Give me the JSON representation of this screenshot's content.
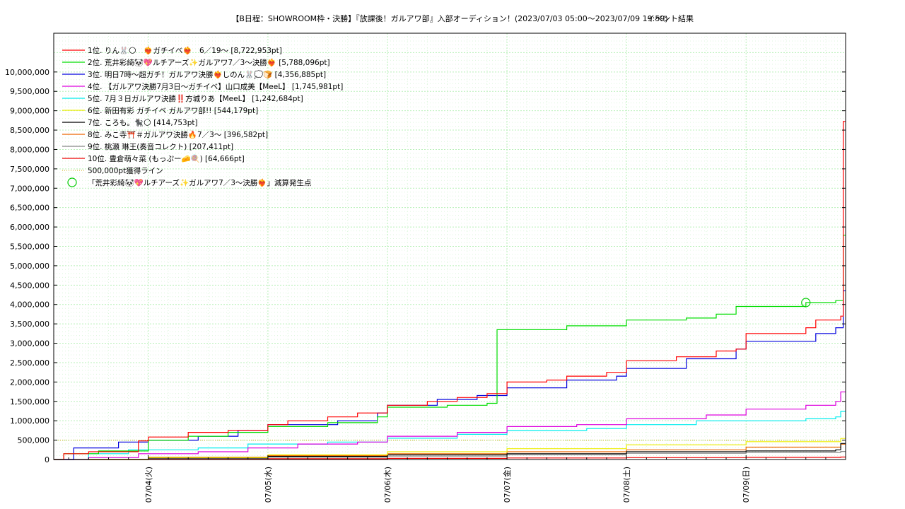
{
  "chart_data": {
    "type": "line",
    "title": "【B日程：SHOWROOM枠・決勝】『放課後！ガルアワ部』入部オーディション！(2023/07/03 05:00〜2023/07/09 19:59)",
    "subtitle": "イベント結果",
    "xlabel": "",
    "ylabel": "",
    "x_range": [
      "2023/07/03 05:00",
      "2023/07/09 19:59"
    ],
    "ylim": [
      0,
      11000000
    ],
    "grid": true,
    "legend_position": "top-left",
    "x_ticks": [
      "07/04(火)",
      "07/05(水)",
      "07/06(木)",
      "07/07(金)",
      "07/08(土)",
      "07/09(日)"
    ],
    "y_ticks": [
      "0",
      "500,000",
      "1,000,000",
      "1,500,000",
      "2,000,000",
      "2,500,000",
      "3,000,000",
      "3,500,000",
      "4,000,000",
      "4,500,000",
      "5,000,000",
      "5,500,000",
      "6,000,000",
      "6,500,000",
      "7,000,000",
      "7,500,000",
      "8,000,000",
      "8,500,000",
      "9,000,000",
      "9,500,000",
      "10,000,000"
    ],
    "series": [
      {
        "name": "1位. りん🐰🌕　❤️‍🔥ガチイベ❤️‍🔥　6／19〜 [8,722,953pt]",
        "color": "#ff0000",
        "points": [
          [
            "07/03 05:00",
            0
          ],
          [
            "07/03 07:00",
            150000
          ],
          [
            "07/03 12:00",
            200000
          ],
          [
            "07/03 22:00",
            480000
          ],
          [
            "07/04 00:00",
            580000
          ],
          [
            "07/04 08:00",
            700000
          ],
          [
            "07/04 16:00",
            750000
          ],
          [
            "07/05 00:00",
            900000
          ],
          [
            "07/05 04:00",
            1000000
          ],
          [
            "07/05 12:00",
            1100000
          ],
          [
            "07/05 18:00",
            1200000
          ],
          [
            "07/06 00:00",
            1400000
          ],
          [
            "07/06 08:00",
            1500000
          ],
          [
            "07/06 14:00",
            1600000
          ],
          [
            "07/06 20:00",
            1700000
          ],
          [
            "07/07 00:00",
            2000000
          ],
          [
            "07/07 08:00",
            2050000
          ],
          [
            "07/07 12:00",
            2150000
          ],
          [
            "07/07 20:00",
            2250000
          ],
          [
            "07/08 00:00",
            2550000
          ],
          [
            "07/08 10:00",
            2650000
          ],
          [
            "07/08 18:00",
            2800000
          ],
          [
            "07/08 22:00",
            2850000
          ],
          [
            "07/09 00:00",
            3250000
          ],
          [
            "07/09 12:00",
            3400000
          ],
          [
            "07/09 14:00",
            3600000
          ],
          [
            "07/09 19:00",
            3700000
          ],
          [
            "07/09 19:30",
            8722953
          ],
          [
            "07/09 19:59",
            8722953
          ]
        ]
      },
      {
        "name": "2位. 荒井彩綺🐼💖ルチアーズ✨ガルアワ7／3〜決勝❤️‍🔥 [5,788,096pt]",
        "color": "#00dd00",
        "points": [
          [
            "07/03 05:00",
            0
          ],
          [
            "07/03 07:00",
            150000
          ],
          [
            "07/03 14:00",
            220000
          ],
          [
            "07/04 00:00",
            500000
          ],
          [
            "07/04 08:00",
            600000
          ],
          [
            "07/04 16:00",
            700000
          ],
          [
            "07/05 00:00",
            850000
          ],
          [
            "07/05 12:00",
            950000
          ],
          [
            "07/05 22:00",
            1100000
          ],
          [
            "07/06 00:00",
            1350000
          ],
          [
            "07/06 12:00",
            1400000
          ],
          [
            "07/06 20:00",
            1450000
          ],
          [
            "07/06 22:00",
            3350000
          ],
          [
            "07/07 12:00",
            3450000
          ],
          [
            "07/08 00:00",
            3600000
          ],
          [
            "07/08 12:00",
            3650000
          ],
          [
            "07/08 18:00",
            3750000
          ],
          [
            "07/08 22:00",
            3950000
          ],
          [
            "07/09 12:00",
            4050000
          ],
          [
            "07/09 18:00",
            4100000
          ],
          [
            "07/09 19:30",
            5788096
          ],
          [
            "07/09 19:59",
            5788096
          ]
        ]
      },
      {
        "name": "3位. 明日7時〜超ガチ！ガルアワ決勝❤️‍🔥しのん🐰💭🍞 [4,356,885pt]",
        "color": "#0000dd",
        "points": [
          [
            "07/03 05:00",
            0
          ],
          [
            "07/03 09:00",
            300000
          ],
          [
            "07/03 18:00",
            450000
          ],
          [
            "07/04 00:00",
            500000
          ],
          [
            "07/04 10:00",
            600000
          ],
          [
            "07/04 18:00",
            750000
          ],
          [
            "07/05 00:00",
            900000
          ],
          [
            "07/05 14:00",
            1000000
          ],
          [
            "07/05 22:00",
            1200000
          ],
          [
            "07/06 00:00",
            1400000
          ],
          [
            "07/06 10:00",
            1550000
          ],
          [
            "07/06 18:00",
            1650000
          ],
          [
            "07/07 00:00",
            1850000
          ],
          [
            "07/07 12:00",
            2050000
          ],
          [
            "07/07 22:00",
            2150000
          ],
          [
            "07/08 00:00",
            2350000
          ],
          [
            "07/08 12:00",
            2600000
          ],
          [
            "07/08 22:00",
            2850000
          ],
          [
            "07/09 00:00",
            3050000
          ],
          [
            "07/09 14:00",
            3250000
          ],
          [
            "07/09 18:00",
            3400000
          ],
          [
            "07/09 19:30",
            4356885
          ],
          [
            "07/09 19:59",
            4356885
          ]
        ]
      },
      {
        "name": "4位. 【ガルアワ決勝7月3日〜ガチイベ】山口成美【MeeL】 [1,745,981pt]",
        "color": "#dd00dd",
        "points": [
          [
            "07/03 05:00",
            0
          ],
          [
            "07/03 12:00",
            50000
          ],
          [
            "07/03 22:00",
            150000
          ],
          [
            "07/04 10:00",
            200000
          ],
          [
            "07/04 20:00",
            300000
          ],
          [
            "07/05 06:00",
            400000
          ],
          [
            "07/05 18:00",
            450000
          ],
          [
            "07/06 00:00",
            600000
          ],
          [
            "07/06 14:00",
            700000
          ],
          [
            "07/07 00:00",
            850000
          ],
          [
            "07/07 14:00",
            900000
          ],
          [
            "07/08 00:00",
            1050000
          ],
          [
            "07/08 16:00",
            1150000
          ],
          [
            "07/09 00:00",
            1300000
          ],
          [
            "07/09 12:00",
            1400000
          ],
          [
            "07/09 18:00",
            1500000
          ],
          [
            "07/09 19:00",
            1745981
          ],
          [
            "07/09 19:59",
            1745981
          ]
        ]
      },
      {
        "name": "5位. 7月３日ガルアワ決勝‼️方城りあ【MeeL】 [1,242,684pt]",
        "color": "#00eeee",
        "points": [
          [
            "07/03 05:00",
            0
          ],
          [
            "07/03 12:00",
            150000
          ],
          [
            "07/03 20:00",
            250000
          ],
          [
            "07/04 10:00",
            300000
          ],
          [
            "07/04 20:00",
            400000
          ],
          [
            "07/05 12:00",
            450000
          ],
          [
            "07/06 00:00",
            550000
          ],
          [
            "07/06 14:00",
            650000
          ],
          [
            "07/07 00:00",
            750000
          ],
          [
            "07/07 16:00",
            800000
          ],
          [
            "07/08 00:00",
            900000
          ],
          [
            "07/08 14:00",
            1000000
          ],
          [
            "07/09 12:00",
            1050000
          ],
          [
            "07/09 18:00",
            1100000
          ],
          [
            "07/09 19:00",
            1242684
          ],
          [
            "07/09 19:59",
            1242684
          ]
        ]
      },
      {
        "name": "6位. 新田有彩 ガチイベ ガルアワ部!! [544,179pt]",
        "color": "#eeee00",
        "points": [
          [
            "07/03 05:00",
            0
          ],
          [
            "07/04 00:00",
            50000
          ],
          [
            "07/05 00:00",
            120000
          ],
          [
            "07/06 00:00",
            200000
          ],
          [
            "07/07 00:00",
            280000
          ],
          [
            "07/08 00:00",
            380000
          ],
          [
            "07/09 00:00",
            460000
          ],
          [
            "07/09 19:00",
            544179
          ],
          [
            "07/09 19:59",
            544179
          ]
        ]
      },
      {
        "name": "7位. ころも。🐈‍⬛🌕 [414,753pt]",
        "color": "#000000",
        "points": [
          [
            "07/03 05:00",
            0
          ],
          [
            "07/04 00:00",
            40000
          ],
          [
            "07/05 00:00",
            80000
          ],
          [
            "07/06 00:00",
            120000
          ],
          [
            "07/07 00:00",
            150000
          ],
          [
            "07/08 00:00",
            200000
          ],
          [
            "07/09 00:00",
            220000
          ],
          [
            "07/09 18:00",
            250000
          ],
          [
            "07/09 19:00",
            414753
          ],
          [
            "07/09 19:59",
            414753
          ]
        ]
      },
      {
        "name": "8位. みこ寺⛩️＃ガルアワ決勝🔥7／3〜 [396,582pt]",
        "color": "#ee6600",
        "points": [
          [
            "07/03 05:00",
            0
          ],
          [
            "07/04 00:00",
            60000
          ],
          [
            "07/05 00:00",
            100000
          ],
          [
            "07/06 00:00",
            150000
          ],
          [
            "07/07 00:00",
            200000
          ],
          [
            "07/08 00:00",
            250000
          ],
          [
            "07/09 00:00",
            320000
          ],
          [
            "07/09 19:00",
            396582
          ],
          [
            "07/09 19:59",
            396582
          ]
        ]
      },
      {
        "name": "9位. 桃瀬 琳王(奏音コレクト) [207,411pt]",
        "color": "#888888",
        "points": [
          [
            "07/03 05:00",
            0
          ],
          [
            "07/04 00:00",
            30000
          ],
          [
            "07/05 00:00",
            60000
          ],
          [
            "07/06 00:00",
            90000
          ],
          [
            "07/07 00:00",
            120000
          ],
          [
            "07/08 00:00",
            160000
          ],
          [
            "07/09 00:00",
            180000
          ],
          [
            "07/09 19:00",
            207411
          ],
          [
            "07/09 19:59",
            207411
          ]
        ]
      },
      {
        "name": "10位. 豊倉萌々菜 (もっぷー🧀🍭) [64,666pt]",
        "color": "#ee0000",
        "points": [
          [
            "07/03 05:00",
            0
          ],
          [
            "07/04 00:00",
            10000
          ],
          [
            "07/05 00:00",
            20000
          ],
          [
            "07/06 00:00",
            30000
          ],
          [
            "07/07 00:00",
            40000
          ],
          [
            "07/08 00:00",
            50000
          ],
          [
            "07/09 00:00",
            55000
          ],
          [
            "07/09 19:00",
            64666
          ],
          [
            "07/09 19:59",
            64666
          ]
        ]
      }
    ],
    "reference_line": {
      "name": "500,000pt獲得ライン",
      "value": 500000,
      "color": "#ccaa00"
    },
    "marker": {
      "name": "「荒井彩綺🐼💖ルチアーズ✨ガルアワ7／3〜決勝❤️‍🔥」減算発生点",
      "x": "07/09 12:00",
      "y": 4050000,
      "color": "#00cc00"
    }
  }
}
